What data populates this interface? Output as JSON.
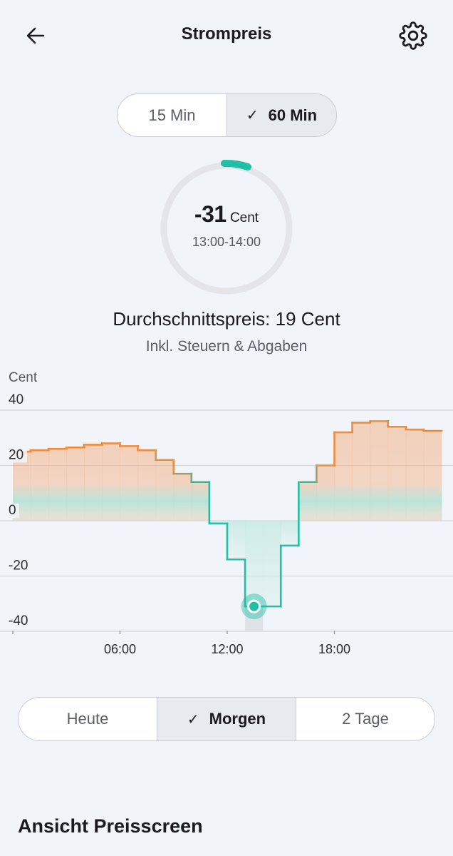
{
  "header": {
    "title": "Strompreis",
    "back_icon": "arrow-left-icon",
    "settings_icon": "gear-icon"
  },
  "interval": {
    "options": [
      "15 Min",
      "60 Min"
    ],
    "selected": "60 Min",
    "check_glyph": "✓"
  },
  "current": {
    "value": "-31",
    "unit": "Cent",
    "time": "13:00-14:00"
  },
  "average": {
    "text": "Durchschnittspreis: 19 Cent",
    "subtitle": "Inkl. Steuern & Abgaben"
  },
  "chart_data": {
    "type": "line",
    "ylabel": "Cent",
    "xlabel": "",
    "ylim": [
      -45,
      40
    ],
    "yticks": [
      "40",
      "20",
      "0",
      "-20",
      "-40"
    ],
    "xticks": [
      "06:00",
      "12:00",
      "18:00"
    ],
    "step": true,
    "x": [
      0,
      1,
      2,
      3,
      4,
      5,
      6,
      7,
      8,
      9,
      10,
      11,
      12,
      13,
      14,
      15,
      16,
      17,
      18,
      19,
      20,
      21,
      22,
      23
    ],
    "values": [
      25,
      25.5,
      26,
      26.5,
      27.5,
      28,
      27,
      25.5,
      22,
      17,
      14,
      -1,
      -14,
      -31,
      -31,
      -9,
      14,
      20,
      32,
      35.5,
      36,
      34,
      33,
      32.5
    ],
    "selected_hour": 13,
    "colors": {
      "positive": "#ef8c3c",
      "negative": "#23bea6",
      "grid": "#d4d7dc"
    }
  },
  "range": {
    "options": [
      "Heute",
      "Morgen",
      "2 Tage"
    ],
    "selected": "Morgen",
    "check_glyph": "✓"
  },
  "section": {
    "title": "Ansicht Preisscreen"
  }
}
